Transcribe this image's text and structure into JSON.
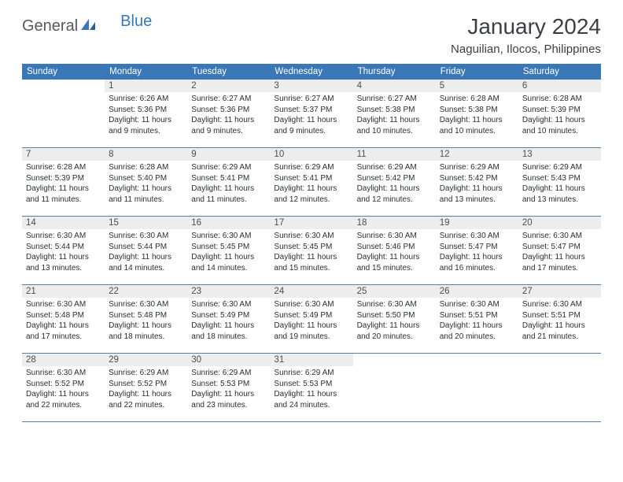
{
  "logo": {
    "part1": "General",
    "part2": "Blue"
  },
  "title": "January 2024",
  "location": "Naguilian, Ilocos, Philippines",
  "colors": {
    "header_bg": "#3a77b7",
    "header_text": "#ffffff",
    "daynum_bg": "#ededed",
    "body_text": "#2a2e33",
    "border": "#5b7fa3",
    "logo_gray": "#555a60",
    "logo_blue": "#3a77b7"
  },
  "day_headers": [
    "Sunday",
    "Monday",
    "Tuesday",
    "Wednesday",
    "Thursday",
    "Friday",
    "Saturday"
  ],
  "weeks": [
    [
      {
        "num": "",
        "sunrise": "",
        "sunset": "",
        "daylight": ""
      },
      {
        "num": "1",
        "sunrise": "Sunrise: 6:26 AM",
        "sunset": "Sunset: 5:36 PM",
        "daylight": "Daylight: 11 hours and 9 minutes."
      },
      {
        "num": "2",
        "sunrise": "Sunrise: 6:27 AM",
        "sunset": "Sunset: 5:36 PM",
        "daylight": "Daylight: 11 hours and 9 minutes."
      },
      {
        "num": "3",
        "sunrise": "Sunrise: 6:27 AM",
        "sunset": "Sunset: 5:37 PM",
        "daylight": "Daylight: 11 hours and 9 minutes."
      },
      {
        "num": "4",
        "sunrise": "Sunrise: 6:27 AM",
        "sunset": "Sunset: 5:38 PM",
        "daylight": "Daylight: 11 hours and 10 minutes."
      },
      {
        "num": "5",
        "sunrise": "Sunrise: 6:28 AM",
        "sunset": "Sunset: 5:38 PM",
        "daylight": "Daylight: 11 hours and 10 minutes."
      },
      {
        "num": "6",
        "sunrise": "Sunrise: 6:28 AM",
        "sunset": "Sunset: 5:39 PM",
        "daylight": "Daylight: 11 hours and 10 minutes."
      }
    ],
    [
      {
        "num": "7",
        "sunrise": "Sunrise: 6:28 AM",
        "sunset": "Sunset: 5:39 PM",
        "daylight": "Daylight: 11 hours and 11 minutes."
      },
      {
        "num": "8",
        "sunrise": "Sunrise: 6:28 AM",
        "sunset": "Sunset: 5:40 PM",
        "daylight": "Daylight: 11 hours and 11 minutes."
      },
      {
        "num": "9",
        "sunrise": "Sunrise: 6:29 AM",
        "sunset": "Sunset: 5:41 PM",
        "daylight": "Daylight: 11 hours and 11 minutes."
      },
      {
        "num": "10",
        "sunrise": "Sunrise: 6:29 AM",
        "sunset": "Sunset: 5:41 PM",
        "daylight": "Daylight: 11 hours and 12 minutes."
      },
      {
        "num": "11",
        "sunrise": "Sunrise: 6:29 AM",
        "sunset": "Sunset: 5:42 PM",
        "daylight": "Daylight: 11 hours and 12 minutes."
      },
      {
        "num": "12",
        "sunrise": "Sunrise: 6:29 AM",
        "sunset": "Sunset: 5:42 PM",
        "daylight": "Daylight: 11 hours and 13 minutes."
      },
      {
        "num": "13",
        "sunrise": "Sunrise: 6:29 AM",
        "sunset": "Sunset: 5:43 PM",
        "daylight": "Daylight: 11 hours and 13 minutes."
      }
    ],
    [
      {
        "num": "14",
        "sunrise": "Sunrise: 6:30 AM",
        "sunset": "Sunset: 5:44 PM",
        "daylight": "Daylight: 11 hours and 13 minutes."
      },
      {
        "num": "15",
        "sunrise": "Sunrise: 6:30 AM",
        "sunset": "Sunset: 5:44 PM",
        "daylight": "Daylight: 11 hours and 14 minutes."
      },
      {
        "num": "16",
        "sunrise": "Sunrise: 6:30 AM",
        "sunset": "Sunset: 5:45 PM",
        "daylight": "Daylight: 11 hours and 14 minutes."
      },
      {
        "num": "17",
        "sunrise": "Sunrise: 6:30 AM",
        "sunset": "Sunset: 5:45 PM",
        "daylight": "Daylight: 11 hours and 15 minutes."
      },
      {
        "num": "18",
        "sunrise": "Sunrise: 6:30 AM",
        "sunset": "Sunset: 5:46 PM",
        "daylight": "Daylight: 11 hours and 15 minutes."
      },
      {
        "num": "19",
        "sunrise": "Sunrise: 6:30 AM",
        "sunset": "Sunset: 5:47 PM",
        "daylight": "Daylight: 11 hours and 16 minutes."
      },
      {
        "num": "20",
        "sunrise": "Sunrise: 6:30 AM",
        "sunset": "Sunset: 5:47 PM",
        "daylight": "Daylight: 11 hours and 17 minutes."
      }
    ],
    [
      {
        "num": "21",
        "sunrise": "Sunrise: 6:30 AM",
        "sunset": "Sunset: 5:48 PM",
        "daylight": "Daylight: 11 hours and 17 minutes."
      },
      {
        "num": "22",
        "sunrise": "Sunrise: 6:30 AM",
        "sunset": "Sunset: 5:48 PM",
        "daylight": "Daylight: 11 hours and 18 minutes."
      },
      {
        "num": "23",
        "sunrise": "Sunrise: 6:30 AM",
        "sunset": "Sunset: 5:49 PM",
        "daylight": "Daylight: 11 hours and 18 minutes."
      },
      {
        "num": "24",
        "sunrise": "Sunrise: 6:30 AM",
        "sunset": "Sunset: 5:49 PM",
        "daylight": "Daylight: 11 hours and 19 minutes."
      },
      {
        "num": "25",
        "sunrise": "Sunrise: 6:30 AM",
        "sunset": "Sunset: 5:50 PM",
        "daylight": "Daylight: 11 hours and 20 minutes."
      },
      {
        "num": "26",
        "sunrise": "Sunrise: 6:30 AM",
        "sunset": "Sunset: 5:51 PM",
        "daylight": "Daylight: 11 hours and 20 minutes."
      },
      {
        "num": "27",
        "sunrise": "Sunrise: 6:30 AM",
        "sunset": "Sunset: 5:51 PM",
        "daylight": "Daylight: 11 hours and 21 minutes."
      }
    ],
    [
      {
        "num": "28",
        "sunrise": "Sunrise: 6:30 AM",
        "sunset": "Sunset: 5:52 PM",
        "daylight": "Daylight: 11 hours and 22 minutes."
      },
      {
        "num": "29",
        "sunrise": "Sunrise: 6:29 AM",
        "sunset": "Sunset: 5:52 PM",
        "daylight": "Daylight: 11 hours and 22 minutes."
      },
      {
        "num": "30",
        "sunrise": "Sunrise: 6:29 AM",
        "sunset": "Sunset: 5:53 PM",
        "daylight": "Daylight: 11 hours and 23 minutes."
      },
      {
        "num": "31",
        "sunrise": "Sunrise: 6:29 AM",
        "sunset": "Sunset: 5:53 PM",
        "daylight": "Daylight: 11 hours and 24 minutes."
      },
      {
        "num": "",
        "sunrise": "",
        "sunset": "",
        "daylight": ""
      },
      {
        "num": "",
        "sunrise": "",
        "sunset": "",
        "daylight": ""
      },
      {
        "num": "",
        "sunrise": "",
        "sunset": "",
        "daylight": ""
      }
    ]
  ]
}
